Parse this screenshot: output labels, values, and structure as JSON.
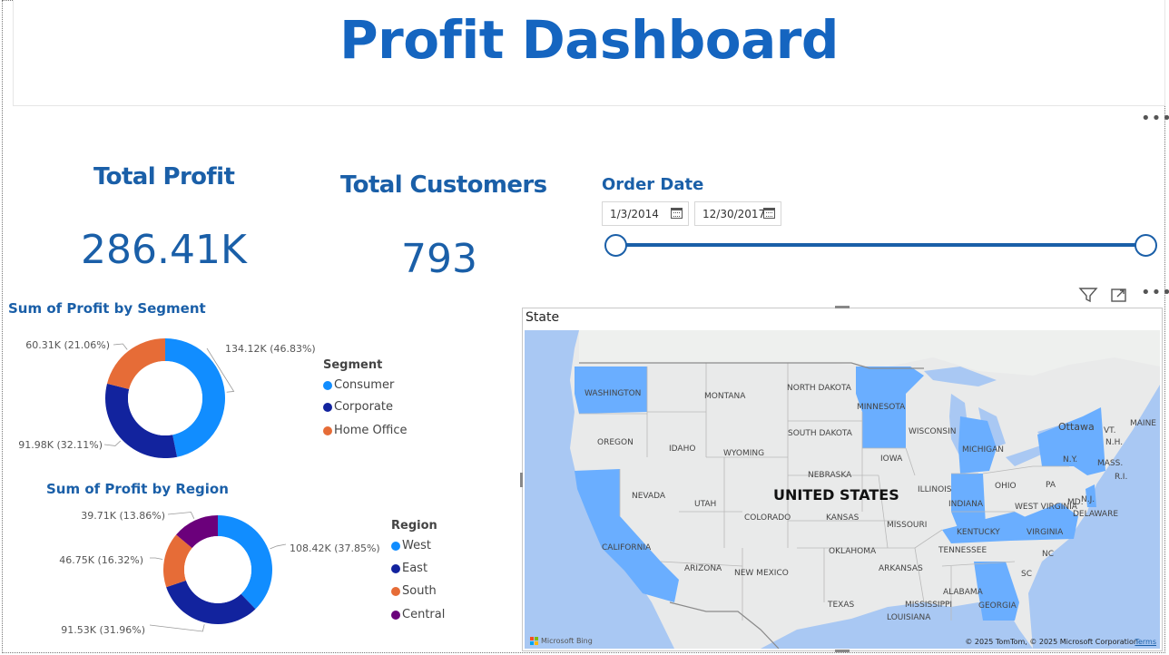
{
  "header": {
    "title": "Profit Dashboard"
  },
  "kpis": {
    "total_profit": {
      "label": "Total Profit",
      "value": "286.41K"
    },
    "total_customers": {
      "label": "Total Customers",
      "value": "793"
    }
  },
  "order_date_slicer": {
    "label": "Order Date",
    "start_date": "1/3/2014",
    "end_date": "12/30/2017",
    "range_fraction": [
      0,
      1
    ]
  },
  "colors": {
    "accent": "#1a5fa8",
    "title": "#1565c0",
    "consumer_west": "#118dff",
    "corporate_east": "#12239e",
    "home_office_south": "#e66c37",
    "central": "#6b007b",
    "map_highlight": "#6aaeff",
    "water": "#a9c8f3"
  },
  "icons": {
    "filter": "filter-icon",
    "focus_mode": "focus-mode-icon",
    "more_options": "more-options-icon",
    "calendar": "calendar-icon"
  },
  "chart_data": [
    {
      "type": "pie",
      "variant": "donut",
      "title": "Sum of Profit by Segment",
      "legend_title": "Segment",
      "legend_position": "right",
      "categories": [
        "Consumer",
        "Corporate",
        "Home Office"
      ],
      "values": [
        134.12,
        91.98,
        60.31
      ],
      "unit": "K",
      "data_labels": [
        "134.12K (46.83%)",
        "91.98K (32.11%)",
        "60.31K (21.06%)"
      ],
      "percent": [
        46.83,
        32.11,
        21.06
      ],
      "colors": [
        "#118dff",
        "#12239e",
        "#e66c37"
      ]
    },
    {
      "type": "pie",
      "variant": "donut",
      "title": "Sum of Profit by Region",
      "legend_title": "Region",
      "legend_position": "right",
      "categories": [
        "West",
        "East",
        "South",
        "Central"
      ],
      "values": [
        108.42,
        91.53,
        46.75,
        39.71
      ],
      "unit": "K",
      "data_labels": [
        "108.42K (37.85%)",
        "91.53K (31.96%)",
        "46.75K (16.32%)",
        "39.71K (13.86%)"
      ],
      "percent": [
        37.85,
        31.96,
        16.32,
        13.86
      ],
      "colors": [
        "#118dff",
        "#12239e",
        "#e66c37",
        "#6b007b"
      ]
    }
  ],
  "map": {
    "title": "State",
    "country_label": "UNITED STATES",
    "highlighted_states": [
      "WASHINGTON",
      "CALIFORNIA",
      "MINNESOTA",
      "MICHIGAN",
      "N.Y.",
      "KENTUCKY",
      "VIRGINIA",
      "GEORGIA",
      "INDIANA",
      "DELAWARE"
    ],
    "state_labels": [
      "WASHINGTON",
      "MONTANA",
      "NORTH DAKOTA",
      "MINNESOTA",
      "OREGON",
      "IDAHO",
      "WYOMING",
      "SOUTH DAKOTA",
      "WISCONSIN",
      "MICHIGAN",
      "IOWA",
      "NEBRASKA",
      "NEVADA",
      "UTAH",
      "COLORADO",
      "KANSAS",
      "ILLINOIS",
      "INDIANA",
      "OHIO",
      "PA",
      "N.J.",
      "WEST VIRGINIA",
      "KENTUCKY",
      "VIRGINIA",
      "DELAWARE",
      "MD.",
      "MISSOURI",
      "CALIFORNIA",
      "ARIZONA",
      "NEW MEXICO",
      "OKLAHOMA",
      "ARKANSAS",
      "TENNESSEE",
      "NC",
      "SC",
      "ALABAMA",
      "GEORGIA",
      "TEXAS",
      "MISSISSIPPI",
      "LOUISIANA",
      "N.Y.",
      "MASS.",
      "R.I.",
      "N.H.",
      "VT.",
      "MAINE",
      "Ottawa"
    ],
    "copyright": "© 2025 TomTom, © 2025 Microsoft Corporation",
    "terms_link": "Terms",
    "provider": "Microsoft Bing"
  }
}
